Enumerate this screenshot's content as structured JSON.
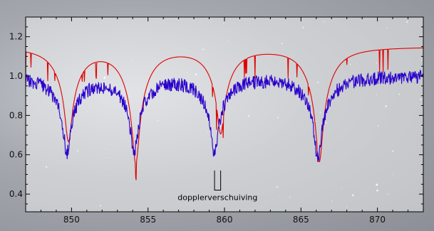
{
  "chart_data": {
    "type": "line",
    "title": "",
    "xlabel": "",
    "ylabel": "",
    "xlim": [
      847,
      873
    ],
    "ylim": [
      0.31,
      1.3
    ],
    "x_ticks": [
      850,
      855,
      860,
      865,
      870
    ],
    "x_tick_labels": [
      "850",
      "855",
      "860",
      "865",
      "870"
    ],
    "y_ticks": [
      0.4,
      0.6,
      0.8,
      1.0,
      1.2
    ],
    "y_tick_labels": [
      "0.4",
      "0.6",
      "0.8",
      "1.0",
      "1.2"
    ],
    "grid": false,
    "legend": "none",
    "series": [
      {
        "color": "#e00000",
        "style": "rest-frame model spectrum, offset upward",
        "continuum": 1.15,
        "lines": [
          {
            "center": 849.8,
            "min": 0.68
          },
          {
            "center": 854.2,
            "min": 0.57
          },
          {
            "center": 859.75,
            "min": 0.72
          },
          {
            "center": 866.2,
            "min": 0.57
          }
        ]
      },
      {
        "color": "#2a00cc",
        "style": "observed spectrum, noisy",
        "continuum": 1.0,
        "lines": [
          {
            "center": 849.7,
            "min": 0.62
          },
          {
            "center": 854.1,
            "min": 0.63
          },
          {
            "center": 859.35,
            "min": 0.62
          },
          {
            "center": 866.1,
            "min": 0.59
          }
        ]
      }
    ],
    "annotations": [
      {
        "text": "dopplerverschuiving",
        "x_from": 859.35,
        "x_to": 859.75,
        "y": 0.42
      }
    ]
  }
}
